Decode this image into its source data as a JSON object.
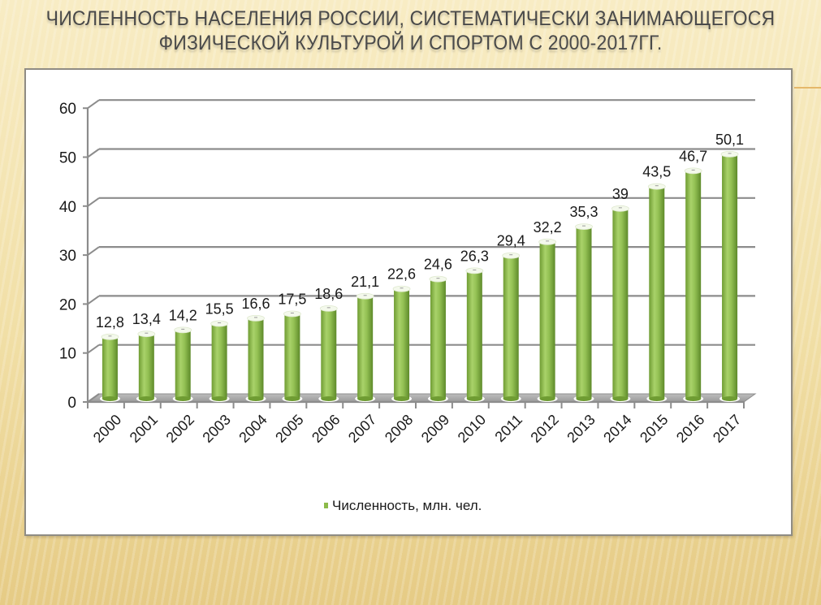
{
  "slide": {
    "title_line1": "ЧИСЛЕННОСТЬ НАСЕЛЕНИЯ РОССИИ, СИСТЕМАТИЧЕСКИ ЗАНИМАЮЩЕГОСЯ",
    "title_line2": "ФИЗИЧЕСКОЙ КУЛЬТУРОЙ И СПОРТОМ С 2000-2017ГГ."
  },
  "colors": {
    "bar": "#8cba4a",
    "bar_light": "#b4d877",
    "bar_dark": "#5e8a2a",
    "floor": "#a6a6a6",
    "grid": "#8c8c8c",
    "text": "#1a1a1a"
  },
  "legend": {
    "label": "Численность, млн. чел."
  },
  "chart_data": {
    "type": "bar",
    "title": "Численность населения России, систематически занимающегося физической культурой и спортом с 2000-2017гг.",
    "xlabel": "",
    "ylabel": "",
    "categories": [
      "2000",
      "2001",
      "2002",
      "2003",
      "2004",
      "2005",
      "2006",
      "2007",
      "2008",
      "2009",
      "2010",
      "2011",
      "2012",
      "2013",
      "2014",
      "2015",
      "2016",
      "2017"
    ],
    "series": [
      {
        "name": "Численность, млн. чел.",
        "values": [
          12.8,
          13.4,
          14.2,
          15.5,
          16.6,
          17.5,
          18.6,
          21.1,
          22.6,
          24.6,
          26.3,
          29.4,
          32.2,
          35.3,
          39,
          43.5,
          46.7,
          50.1
        ]
      }
    ],
    "data_labels": [
      "12,8",
      "13,4",
      "14,2",
      "15,5",
      "16,6",
      "17,5",
      "18,6",
      "21,1",
      "22,6",
      "24,6",
      "26,3",
      "29,4",
      "32,2",
      "35,3",
      "39",
      "43,5",
      "46,7",
      "50,1"
    ],
    "ylim": [
      0,
      60
    ],
    "yticks": [
      0,
      10,
      20,
      30,
      40,
      50,
      60
    ],
    "grid": true,
    "style": "3d-cylinder",
    "legend_position": "bottom"
  }
}
